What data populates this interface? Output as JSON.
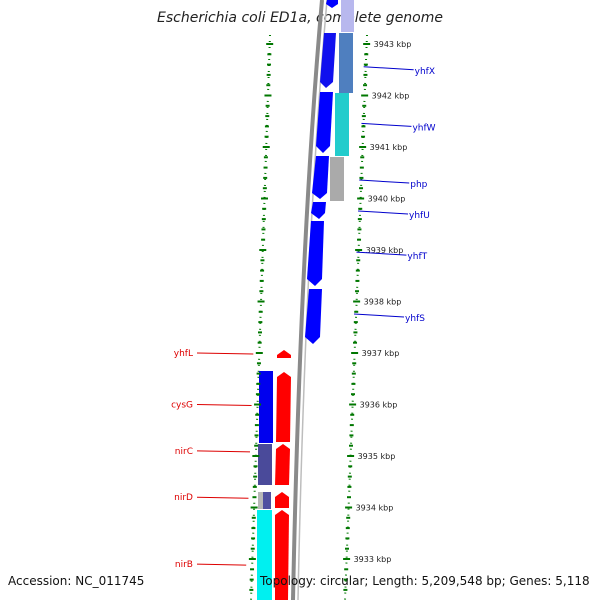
{
  "title": "Escherichia coli ED1a, complete genome",
  "accession_label": "Accession: NC_011745",
  "topology_label": "Topology: circular; Length: 5,209,548 bp; Genes: 5,118",
  "colors": {
    "forward_label": "#0000cc",
    "reverse_label": "#dd0000",
    "tick": "#007700",
    "backbone": "#888888",
    "gene_blue": "#0000ff",
    "gene_red": "#ff0000"
  },
  "chart_data": {
    "type": "genome-map",
    "kbp_scale": [
      {
        "label": "3943 kbp",
        "kbp": 3943
      },
      {
        "label": "3942 kbp",
        "kbp": 3942
      },
      {
        "label": "3941 kbp",
        "kbp": 3941
      },
      {
        "label": "3940 kbp",
        "kbp": 3940
      },
      {
        "label": "3939 kbp",
        "kbp": 3939
      },
      {
        "label": "3938 kbp",
        "kbp": 3938
      },
      {
        "label": "3937 kbp",
        "kbp": 3937
      },
      {
        "label": "3936 kbp",
        "kbp": 3936
      },
      {
        "label": "3935 kbp",
        "kbp": 3935
      },
      {
        "label": "3934 kbp",
        "kbp": 3934
      },
      {
        "label": "3933 kbp",
        "kbp": 3933
      }
    ],
    "forward_genes": [
      {
        "label": "yhfX",
        "kbp": 3942.5
      },
      {
        "label": "yhfW",
        "kbp": 3941.4
      },
      {
        "label": "php",
        "kbp": 3940.3
      },
      {
        "label": "yhfU",
        "kbp": 3939.7
      },
      {
        "label": "yhfT",
        "kbp": 3938.9
      },
      {
        "label": "yhfS",
        "kbp": 3937.7
      }
    ],
    "reverse_genes": [
      {
        "label": "yhfL",
        "kbp": 3937.0
      },
      {
        "label": "cysG",
        "kbp": 3936.0
      },
      {
        "label": "nirC",
        "kbp": 3935.1
      },
      {
        "label": "nirD",
        "kbp": 3934.2
      },
      {
        "label": "nirB",
        "kbp": 3932.9
      }
    ]
  }
}
